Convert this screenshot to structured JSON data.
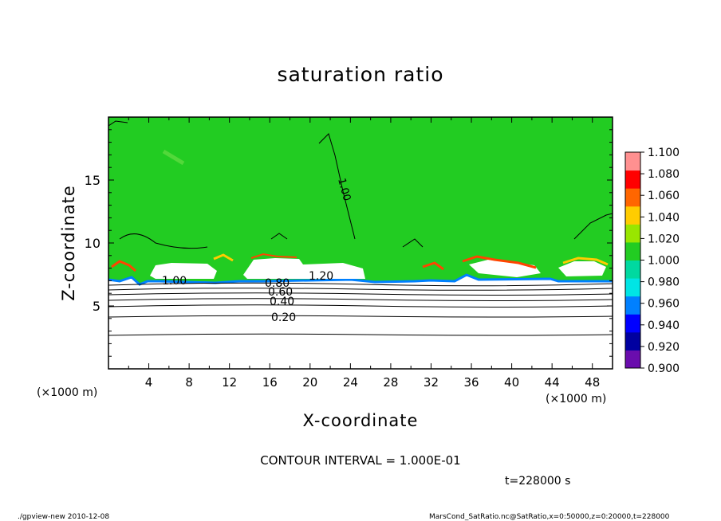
{
  "chart_data": {
    "type": "heatmap",
    "title": "saturation ratio",
    "xlabel": "X-coordinate",
    "ylabel": "Z-coordinate",
    "x_unit": "(×1000 m)",
    "y_unit": "(×1000 m)",
    "xlim": [
      0,
      50
    ],
    "ylim": [
      0,
      20
    ],
    "x_ticks": [
      4,
      8,
      12,
      16,
      20,
      24,
      28,
      32,
      36,
      40,
      44,
      48
    ],
    "y_ticks": [
      5,
      10,
      15
    ],
    "colorbar": {
      "levels": [
        "0.900",
        "0.920",
        "0.940",
        "0.960",
        "0.980",
        "1.000",
        "1.020",
        "1.040",
        "1.060",
        "1.080",
        "1.100"
      ],
      "colors": [
        "#6a0dad",
        "#0000a0",
        "#0000ff",
        "#0080ff",
        "#00e5e5",
        "#00d9a0",
        "#22cc22",
        "#99e600",
        "#ffcc00",
        "#ff6600",
        "#ff0000",
        "#ff9090"
      ]
    },
    "field_colors": {
      "saturated": "#22cc22",
      "supersaturated_low": "#99e600",
      "supersaturated_mid": "#ffcc00",
      "supersaturated_high": "#ff4400",
      "subsaturated_edge": "#0080ff",
      "dry": "#ffffff"
    },
    "contour_labels": [
      "1.00",
      "1.20",
      "0.80",
      "0.60",
      "0.40",
      "0.20",
      "1.00"
    ],
    "contour_interval_text": "CONTOUR INTERVAL = 1.000E-01",
    "time_text": "t=228000 s"
  },
  "footer": {
    "left": "./gpview-new   2010-12-08",
    "right": "MarsCond_SatRatio.nc@SatRatio,x=0:50000,z=0:20000,t=228000"
  }
}
